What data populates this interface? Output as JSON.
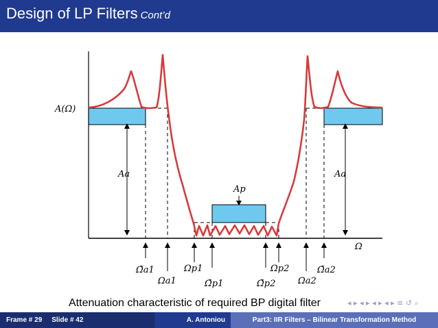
{
  "slide": {
    "title": "Design of LP Filters",
    "title_suffix": "Cont’d",
    "caption": "Attenuation characteristic of required BP digital filter",
    "nav_icons": "◂ ▸ ◂ ▸ ◂ ▸ ◂ ▸ ≡ ↺ ⌕"
  },
  "figure": {
    "y_axis_label": "A(Ω)",
    "x_axis_label": "Ω",
    "aa_left": "Aa",
    "aa_right": "Aa",
    "ap": "Ap",
    "freq_labels": {
      "ta1": "Ω̃a1",
      "a1": "Ωa1",
      "p1": "Ωp1",
      "tp1": "Ω̃p1",
      "tp2": "Ω̃p2",
      "p2": "Ωp2",
      "a2": "Ωa2",
      "ta2": "Ω̃a2"
    }
  },
  "footer": {
    "frame": "Frame # 29",
    "slide": "Slide # 42",
    "author": "A. Antoniou",
    "part": "Part3: IIR Filters – Bilinear Transformation Method"
  },
  "colors": {
    "title_bar": "#1f3a8f",
    "response_curve": "#d63a3a",
    "band_fill": "#6fc9ef",
    "footer_dark": "#1a2d6e",
    "footer_mid": "#1f3a8f",
    "footer_light": "#5a6fb8"
  }
}
